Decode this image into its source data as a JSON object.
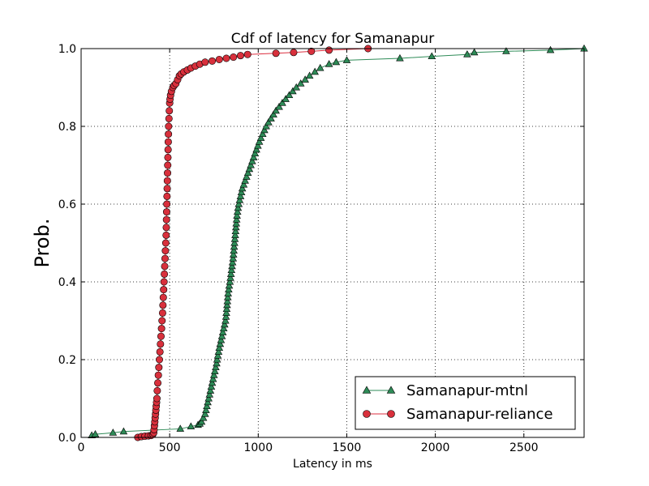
{
  "chart_data": {
    "type": "line",
    "title": "Cdf of latency for Samanapur",
    "xlabel": "Latency in ms",
    "ylabel": "Prob.",
    "xlim": [
      0,
      2840
    ],
    "ylim": [
      0,
      1.0
    ],
    "xticks": [
      0,
      500,
      1000,
      1500,
      2000,
      2500
    ],
    "yticks": [
      0.0,
      0.2,
      0.4,
      0.6,
      0.8,
      1.0
    ],
    "grid": true,
    "legend_position": "lower-right",
    "colors": {
      "mtnl": "#2e8b57",
      "reliance": "#dc2f3f",
      "reliance_marker": "#d8303c"
    },
    "series": [
      {
        "name": "Samanapur-mtnl",
        "marker": "triangle",
        "points": [
          [
            60,
            0.005
          ],
          [
            80,
            0.008
          ],
          [
            180,
            0.012
          ],
          [
            240,
            0.015
          ],
          [
            560,
            0.022
          ],
          [
            620,
            0.028
          ],
          [
            660,
            0.032
          ],
          [
            670,
            0.035
          ],
          [
            680,
            0.04
          ],
          [
            690,
            0.05
          ],
          [
            700,
            0.06
          ],
          [
            705,
            0.07
          ],
          [
            710,
            0.08
          ],
          [
            715,
            0.09
          ],
          [
            720,
            0.1
          ],
          [
            725,
            0.11
          ],
          [
            730,
            0.12
          ],
          [
            735,
            0.13
          ],
          [
            740,
            0.14
          ],
          [
            745,
            0.15
          ],
          [
            750,
            0.16
          ],
          [
            755,
            0.17
          ],
          [
            760,
            0.18
          ],
          [
            765,
            0.19
          ],
          [
            768,
            0.2
          ],
          [
            772,
            0.21
          ],
          [
            776,
            0.22
          ],
          [
            780,
            0.23
          ],
          [
            785,
            0.24
          ],
          [
            790,
            0.25
          ],
          [
            795,
            0.26
          ],
          [
            800,
            0.27
          ],
          [
            805,
            0.28
          ],
          [
            810,
            0.29
          ],
          [
            815,
            0.3
          ],
          [
            818,
            0.31
          ],
          [
            820,
            0.32
          ],
          [
            822,
            0.33
          ],
          [
            824,
            0.34
          ],
          [
            826,
            0.35
          ],
          [
            828,
            0.36
          ],
          [
            830,
            0.37
          ],
          [
            833,
            0.38
          ],
          [
            836,
            0.39
          ],
          [
            840,
            0.4
          ],
          [
            843,
            0.41
          ],
          [
            846,
            0.42
          ],
          [
            849,
            0.43
          ],
          [
            852,
            0.44
          ],
          [
            855,
            0.45
          ],
          [
            858,
            0.46
          ],
          [
            860,
            0.47
          ],
          [
            862,
            0.48
          ],
          [
            864,
            0.49
          ],
          [
            866,
            0.5
          ],
          [
            868,
            0.51
          ],
          [
            870,
            0.52
          ],
          [
            872,
            0.53
          ],
          [
            874,
            0.54
          ],
          [
            876,
            0.55
          ],
          [
            878,
            0.56
          ],
          [
            880,
            0.57
          ],
          [
            883,
            0.58
          ],
          [
            886,
            0.59
          ],
          [
            890,
            0.6
          ],
          [
            895,
            0.61
          ],
          [
            900,
            0.62
          ],
          [
            905,
            0.63
          ],
          [
            910,
            0.64
          ],
          [
            918,
            0.65
          ],
          [
            926,
            0.66
          ],
          [
            934,
            0.67
          ],
          [
            942,
            0.68
          ],
          [
            950,
            0.69
          ],
          [
            958,
            0.7
          ],
          [
            966,
            0.71
          ],
          [
            974,
            0.72
          ],
          [
            982,
            0.73
          ],
          [
            990,
            0.74
          ],
          [
            998,
            0.75
          ],
          [
            1006,
            0.76
          ],
          [
            1015,
            0.77
          ],
          [
            1025,
            0.78
          ],
          [
            1035,
            0.79
          ],
          [
            1045,
            0.8
          ],
          [
            1058,
            0.81
          ],
          [
            1072,
            0.82
          ],
          [
            1086,
            0.83
          ],
          [
            1100,
            0.84
          ],
          [
            1118,
            0.85
          ],
          [
            1136,
            0.86
          ],
          [
            1155,
            0.87
          ],
          [
            1175,
            0.88
          ],
          [
            1195,
            0.89
          ],
          [
            1215,
            0.9
          ],
          [
            1240,
            0.91
          ],
          [
            1265,
            0.92
          ],
          [
            1290,
            0.93
          ],
          [
            1320,
            0.94
          ],
          [
            1350,
            0.95
          ],
          [
            1400,
            0.96
          ],
          [
            1440,
            0.965
          ],
          [
            1500,
            0.97
          ],
          [
            1800,
            0.975
          ],
          [
            1980,
            0.98
          ],
          [
            2180,
            0.985
          ],
          [
            2220,
            0.99
          ],
          [
            2400,
            0.993
          ],
          [
            2650,
            0.996
          ],
          [
            2840,
            1.0
          ]
        ]
      },
      {
        "name": "Samanapur-reliance",
        "marker": "circle",
        "points": [
          [
            320,
            0.0
          ],
          [
            340,
            0.002
          ],
          [
            360,
            0.003
          ],
          [
            380,
            0.004
          ],
          [
            395,
            0.005
          ],
          [
            405,
            0.008
          ],
          [
            410,
            0.012
          ],
          [
            412,
            0.02
          ],
          [
            414,
            0.03
          ],
          [
            416,
            0.04
          ],
          [
            418,
            0.05
          ],
          [
            420,
            0.06
          ],
          [
            422,
            0.07
          ],
          [
            424,
            0.08
          ],
          [
            426,
            0.09
          ],
          [
            428,
            0.1
          ],
          [
            430,
            0.12
          ],
          [
            433,
            0.14
          ],
          [
            436,
            0.16
          ],
          [
            439,
            0.18
          ],
          [
            442,
            0.2
          ],
          [
            445,
            0.22
          ],
          [
            448,
            0.24
          ],
          [
            451,
            0.26
          ],
          [
            454,
            0.28
          ],
          [
            457,
            0.3
          ],
          [
            460,
            0.32
          ],
          [
            462,
            0.34
          ],
          [
            464,
            0.36
          ],
          [
            466,
            0.38
          ],
          [
            468,
            0.4
          ],
          [
            470,
            0.42
          ],
          [
            472,
            0.44
          ],
          [
            474,
            0.46
          ],
          [
            476,
            0.48
          ],
          [
            478,
            0.5
          ],
          [
            480,
            0.52
          ],
          [
            481,
            0.54
          ],
          [
            482,
            0.56
          ],
          [
            483,
            0.58
          ],
          [
            484,
            0.6
          ],
          [
            485,
            0.62
          ],
          [
            486,
            0.64
          ],
          [
            487,
            0.66
          ],
          [
            488,
            0.68
          ],
          [
            489,
            0.7
          ],
          [
            490,
            0.72
          ],
          [
            491,
            0.74
          ],
          [
            492,
            0.76
          ],
          [
            493,
            0.78
          ],
          [
            494,
            0.8
          ],
          [
            496,
            0.82
          ],
          [
            498,
            0.84
          ],
          [
            500,
            0.86
          ],
          [
            502,
            0.87
          ],
          [
            505,
            0.88
          ],
          [
            510,
            0.89
          ],
          [
            518,
            0.9
          ],
          [
            525,
            0.905
          ],
          [
            535,
            0.91
          ],
          [
            545,
            0.92
          ],
          [
            555,
            0.93
          ],
          [
            565,
            0.935
          ],
          [
            580,
            0.94
          ],
          [
            600,
            0.945
          ],
          [
            620,
            0.95
          ],
          [
            645,
            0.955
          ],
          [
            670,
            0.96
          ],
          [
            700,
            0.965
          ],
          [
            740,
            0.968
          ],
          [
            780,
            0.972
          ],
          [
            820,
            0.975
          ],
          [
            860,
            0.978
          ],
          [
            900,
            0.982
          ],
          [
            940,
            0.985
          ],
          [
            1100,
            0.988
          ],
          [
            1200,
            0.99
          ],
          [
            1300,
            0.993
          ],
          [
            1400,
            0.996
          ],
          [
            1620,
            1.0
          ]
        ]
      }
    ]
  }
}
